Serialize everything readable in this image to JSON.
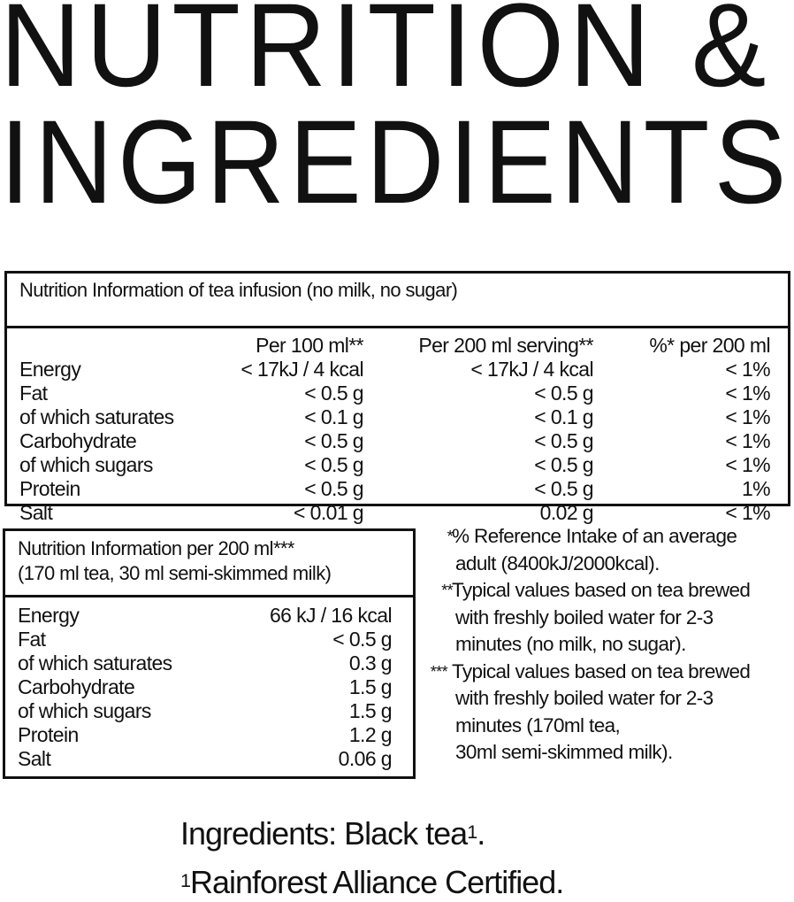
{
  "title": {
    "line1": "NUTRITION &",
    "line2": "INGREDIENTS"
  },
  "table1": {
    "heading": "Nutrition Information of tea infusion (no milk, no sugar)",
    "columns": [
      "Per 100 ml**",
      "Per 200 ml serving**",
      "%* per 200 ml"
    ],
    "rows": [
      {
        "label": "Energy",
        "per100": "< 17kJ / 4 kcal",
        "per200": "< 17kJ / 4 kcal",
        "ri": "< 1%"
      },
      {
        "label": "Fat",
        "per100": "< 0.5 g",
        "per200": "< 0.5 g",
        "ri": "< 1%"
      },
      {
        "label": "of which saturates",
        "per100": "< 0.1 g",
        "per200": "< 0.1 g",
        "ri": "< 1%"
      },
      {
        "label": "Carbohydrate",
        "per100": "< 0.5 g",
        "per200": "< 0.5 g",
        "ri": "< 1%"
      },
      {
        "label": "of which sugars",
        "per100": "< 0.5 g",
        "per200": "< 0.5 g",
        "ri": "< 1%"
      },
      {
        "label": "Protein",
        "per100": "< 0.5 g",
        "per200": "< 0.5 g",
        "ri": "1%"
      },
      {
        "label": "Salt",
        "per100": "< 0.01 g",
        "per200": "0.02 g",
        "ri": "< 1%"
      }
    ]
  },
  "table2": {
    "heading_line1": "Nutrition Information per 200 ml***",
    "heading_line2": "(170 ml tea, 30 ml semi-skimmed milk)",
    "rows": [
      {
        "label": "Energy",
        "value": "66 kJ / 16 kcal"
      },
      {
        "label": "Fat",
        "value": "< 0.5 g"
      },
      {
        "label": "of which saturates",
        "value": "0.3 g"
      },
      {
        "label": "Carbohydrate",
        "value": "1.5 g"
      },
      {
        "label": "of which sugars",
        "value": "1.5 g"
      },
      {
        "label": "Protein",
        "value": "1.2 g"
      },
      {
        "label": "Salt",
        "value": "0.06 g"
      }
    ]
  },
  "footnotes": [
    {
      "marker": "*",
      "lines": [
        "% Reference Intake of an average",
        "adult (8400kJ/2000kcal)."
      ]
    },
    {
      "marker": "**",
      "lines": [
        "Typical values based on tea brewed",
        "with freshly boiled water for 2-3",
        "minutes (no milk, no sugar)."
      ]
    },
    {
      "marker": "***",
      "lines": [
        "Typical values based on tea brewed",
        "with freshly boiled water for 2-3",
        "minutes (170ml tea,",
        "30ml semi-skimmed milk)."
      ]
    }
  ],
  "ingredients": {
    "text": "Ingredients: Black tea",
    "sup": "1",
    "end": ".",
    "note_sup": "1",
    "note": "Rainforest Alliance Certified."
  }
}
